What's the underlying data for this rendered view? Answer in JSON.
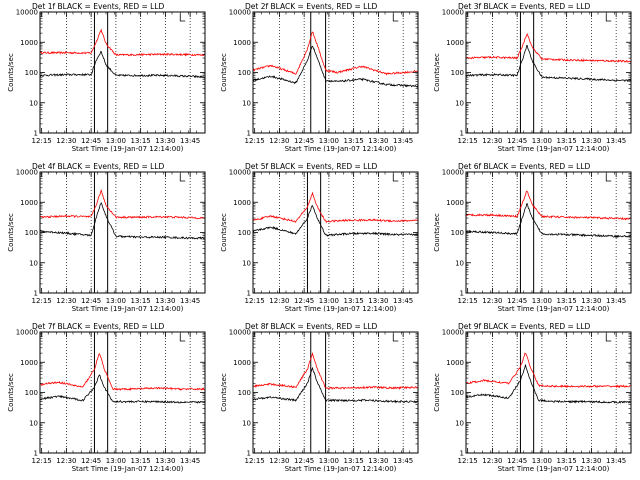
{
  "chart_data": [
    {
      "type": "line",
      "title": "Det 1f BLACK = Events, RED = LLD",
      "xlabel": "Start Time (19-Jan-07 12:14:00)",
      "ylabel": "Counts/sec",
      "y_scale": "log",
      "ylim": [
        1,
        10000
      ],
      "xlim": [
        "12:14",
        "13:54"
      ],
      "x_ticks": [
        "12:15",
        "12:30",
        "12:45",
        "13:00",
        "13:15",
        "13:30",
        "13:45"
      ],
      "y_ticks": [
        "1",
        "10",
        "100",
        "1000",
        "10000"
      ],
      "vlines_dotted": [
        "12:30",
        "12:45",
        "13:00",
        "13:15",
        "13:30",
        "13:45"
      ],
      "vlines_solid": [
        "12:47",
        "12:55"
      ],
      "legend": "top-right",
      "series": [
        {
          "color": "#ff0000",
          "x": [
            "12:14",
            "12:30",
            "12:45",
            "12:48",
            "12:51",
            "12:54",
            "13:00",
            "13:15",
            "13:30",
            "13:45",
            "13:54"
          ],
          "values": [
            450,
            450,
            440,
            1000,
            2600,
            900,
            380,
            390,
            400,
            390,
            380
          ]
        },
        {
          "color": "#000000",
          "x": [
            "12:14",
            "12:30",
            "12:45",
            "12:48",
            "12:51",
            "12:54",
            "13:00",
            "13:15",
            "13:30",
            "13:45",
            "13:54"
          ],
          "values": [
            80,
            85,
            85,
            250,
            500,
            180,
            80,
            80,
            80,
            75,
            70
          ]
        }
      ]
    },
    {
      "type": "line",
      "title": "Det 2f BLACK = Events, RED = LLD",
      "xlabel": "Start Time (19-Jan-07 12:14:00)",
      "ylabel": "Counts/sec",
      "y_scale": "log",
      "ylim": [
        1,
        10000
      ],
      "xlim": [
        "12:14",
        "13:54"
      ],
      "x_ticks": [
        "12:15",
        "12:30",
        "12:45",
        "13:00",
        "13:15",
        "13:30",
        "13:45"
      ],
      "y_ticks": [
        "1",
        "10",
        "100",
        "1000",
        "10000"
      ],
      "vlines_dotted": [
        "12:30",
        "12:45",
        "13:00",
        "13:15",
        "13:30",
        "13:45"
      ],
      "vlines_solid": [
        "12:49",
        "12:58"
      ],
      "legend": "top-right",
      "series": [
        {
          "color": "#ff0000",
          "x": [
            "12:14",
            "12:25",
            "12:40",
            "12:47",
            "12:50",
            "12:53",
            "12:58",
            "13:05",
            "13:20",
            "13:35",
            "13:54"
          ],
          "values": [
            120,
            170,
            90,
            600,
            2300,
            800,
            120,
            100,
            160,
            90,
            110
          ]
        },
        {
          "color": "#000000",
          "x": [
            "12:14",
            "12:25",
            "12:40",
            "12:47",
            "12:50",
            "12:53",
            "12:58",
            "13:05",
            "13:20",
            "13:35",
            "13:54"
          ],
          "values": [
            55,
            75,
            45,
            250,
            800,
            300,
            55,
            50,
            60,
            40,
            35
          ]
        }
      ]
    },
    {
      "type": "line",
      "title": "Det 3f BLACK = Events, RED = LLD",
      "xlabel": "Start Time (19-Jan-07 12:14:00)",
      "ylabel": "Counts/sec",
      "y_scale": "log",
      "ylim": [
        1,
        10000
      ],
      "xlim": [
        "12:14",
        "13:54"
      ],
      "x_ticks": [
        "12:15",
        "12:30",
        "12:45",
        "13:00",
        "13:15",
        "13:30",
        "13:45"
      ],
      "y_ticks": [
        "1",
        "10",
        "100",
        "1000",
        "10000"
      ],
      "vlines_dotted": [
        "12:30",
        "12:45",
        "13:00",
        "13:15",
        "13:30",
        "13:45"
      ],
      "vlines_solid": [
        "12:47",
        "12:55"
      ],
      "legend": "top-right",
      "series": [
        {
          "color": "#ff0000",
          "x": [
            "12:14",
            "12:30",
            "12:45",
            "12:48",
            "12:51",
            "12:54",
            "13:00",
            "13:15",
            "13:30",
            "13:45",
            "13:54"
          ],
          "values": [
            300,
            320,
            300,
            700,
            2000,
            700,
            280,
            260,
            250,
            240,
            230
          ]
        },
        {
          "color": "#000000",
          "x": [
            "12:14",
            "12:30",
            "12:45",
            "12:48",
            "12:51",
            "12:54",
            "13:00",
            "13:15",
            "13:30",
            "13:45",
            "13:54"
          ],
          "values": [
            80,
            85,
            80,
            250,
            800,
            250,
            70,
            65,
            60,
            55,
            55
          ]
        }
      ]
    },
    {
      "type": "line",
      "title": "Det 4f BLACK = Events, RED = LLD",
      "xlabel": "Start Time (19-Jan-07 12:14:00)",
      "ylabel": "Counts/sec",
      "y_scale": "log",
      "ylim": [
        1,
        10000
      ],
      "xlim": [
        "12:14",
        "13:54"
      ],
      "x_ticks": [
        "12:15",
        "12:30",
        "12:45",
        "13:00",
        "13:15",
        "13:30",
        "13:45"
      ],
      "y_ticks": [
        "1",
        "10",
        "100",
        "1000",
        "10000"
      ],
      "vlines_dotted": [
        "12:30",
        "12:45",
        "13:00",
        "13:15",
        "13:30",
        "13:45"
      ],
      "vlines_solid": [
        "12:47",
        "12:55"
      ],
      "legend": "top-right",
      "series": [
        {
          "color": "#ff0000",
          "x": [
            "12:14",
            "12:30",
            "12:45",
            "12:48",
            "12:51",
            "12:54",
            "13:00",
            "13:15",
            "13:30",
            "13:45",
            "13:54"
          ],
          "values": [
            320,
            350,
            330,
            800,
            2400,
            800,
            320,
            320,
            330,
            310,
            300
          ]
        },
        {
          "color": "#000000",
          "x": [
            "12:14",
            "12:30",
            "12:45",
            "12:48",
            "12:51",
            "12:54",
            "13:00",
            "13:15",
            "13:30",
            "13:45",
            "13:54"
          ],
          "values": [
            110,
            95,
            80,
            300,
            1000,
            350,
            75,
            70,
            70,
            65,
            65
          ]
        }
      ]
    },
    {
      "type": "line",
      "title": "Det 5f BLACK = Events, RED = LLD",
      "xlabel": "Start Time (19-Jan-07 12:14:00)",
      "ylabel": "Counts/sec",
      "y_scale": "log",
      "ylim": [
        1,
        10000
      ],
      "xlim": [
        "12:14",
        "13:54"
      ],
      "x_ticks": [
        "12:15",
        "12:30",
        "12:45",
        "13:00",
        "13:15",
        "13:30",
        "13:45"
      ],
      "y_ticks": [
        "1",
        "10",
        "100",
        "1000",
        "10000"
      ],
      "vlines_dotted": [
        "12:30",
        "12:45",
        "13:00",
        "13:15",
        "13:30",
        "13:45"
      ],
      "vlines_solid": [
        "12:47",
        "12:55"
      ],
      "legend": "top-right",
      "series": [
        {
          "color": "#ff0000",
          "x": [
            "12:14",
            "12:25",
            "12:40",
            "12:47",
            "12:50",
            "12:53",
            "12:58",
            "13:10",
            "13:25",
            "13:40",
            "13:54"
          ],
          "values": [
            250,
            350,
            230,
            700,
            2000,
            700,
            230,
            250,
            260,
            240,
            250
          ]
        },
        {
          "color": "#000000",
          "x": [
            "12:14",
            "12:25",
            "12:40",
            "12:47",
            "12:50",
            "12:53",
            "12:58",
            "13:10",
            "13:25",
            "13:40",
            "13:54"
          ],
          "values": [
            110,
            150,
            90,
            300,
            800,
            300,
            80,
            90,
            95,
            85,
            85
          ]
        }
      ]
    },
    {
      "type": "line",
      "title": "Det 6f BLACK = Events, RED = LLD",
      "xlabel": "Start Time (19-Jan-07 12:14:00)",
      "ylabel": "Counts/sec",
      "y_scale": "log",
      "ylim": [
        1,
        10000
      ],
      "xlim": [
        "12:14",
        "13:54"
      ],
      "x_ticks": [
        "12:15",
        "12:30",
        "12:45",
        "13:00",
        "13:15",
        "13:30",
        "13:45"
      ],
      "y_ticks": [
        "1",
        "10",
        "100",
        "1000",
        "10000"
      ],
      "vlines_dotted": [
        "12:30",
        "12:45",
        "13:00",
        "13:15",
        "13:30",
        "13:45"
      ],
      "vlines_solid": [
        "12:47",
        "12:55"
      ],
      "legend": "top-right",
      "series": [
        {
          "color": "#ff0000",
          "x": [
            "12:14",
            "12:30",
            "12:45",
            "12:48",
            "12:51",
            "12:54",
            "13:00",
            "13:15",
            "13:30",
            "13:45",
            "13:54"
          ],
          "values": [
            380,
            380,
            340,
            900,
            2400,
            850,
            340,
            320,
            310,
            290,
            280
          ]
        },
        {
          "color": "#000000",
          "x": [
            "12:14",
            "12:30",
            "12:45",
            "12:48",
            "12:51",
            "12:54",
            "13:00",
            "13:15",
            "13:30",
            "13:45",
            "13:54"
          ],
          "values": [
            110,
            100,
            90,
            300,
            900,
            300,
            90,
            85,
            80,
            75,
            75
          ]
        }
      ]
    },
    {
      "type": "line",
      "title": "Det 7f BLACK = Events, RED = LLD",
      "xlabel": "Start Time (19-Jan-07 12:14:00)",
      "ylabel": "Counts/sec",
      "y_scale": "log",
      "ylim": [
        1,
        10000
      ],
      "xlim": [
        "12:14",
        "13:54"
      ],
      "x_ticks": [
        "12:15",
        "12:30",
        "12:45",
        "13:00",
        "13:15",
        "13:30",
        "13:45"
      ],
      "y_ticks": [
        "1",
        "10",
        "100",
        "1000",
        "10000"
      ],
      "vlines_dotted": [
        "12:30",
        "12:45",
        "13:00",
        "13:15",
        "13:30",
        "13:45"
      ],
      "vlines_solid": [
        "12:47",
        "12:55"
      ],
      "legend": "top-right",
      "series": [
        {
          "color": "#ff0000",
          "x": [
            "12:14",
            "12:25",
            "12:40",
            "12:47",
            "12:50",
            "12:53",
            "12:58",
            "13:10",
            "13:25",
            "13:40",
            "13:54"
          ],
          "values": [
            180,
            220,
            150,
            600,
            2000,
            600,
            130,
            130,
            140,
            130,
            130
          ]
        },
        {
          "color": "#000000",
          "x": [
            "12:14",
            "12:25",
            "12:40",
            "12:47",
            "12:50",
            "12:53",
            "12:58",
            "13:10",
            "13:25",
            "13:40",
            "13:54"
          ],
          "values": [
            60,
            75,
            55,
            150,
            400,
            150,
            50,
            50,
            50,
            48,
            48
          ]
        }
      ]
    },
    {
      "type": "line",
      "title": "Det 8f BLACK = Events, RED = LLD",
      "xlabel": "Start Time (19-Jan-07 12:14:00)",
      "ylabel": "Counts/sec",
      "y_scale": "log",
      "ylim": [
        1,
        10000
      ],
      "xlim": [
        "12:14",
        "13:54"
      ],
      "x_ticks": [
        "12:15",
        "12:30",
        "12:45",
        "13:00",
        "13:15",
        "13:30",
        "13:45"
      ],
      "y_ticks": [
        "1",
        "10",
        "100",
        "1000",
        "10000"
      ],
      "vlines_dotted": [
        "12:30",
        "12:45",
        "13:00",
        "13:15",
        "13:30",
        "13:45"
      ],
      "vlines_solid": [
        "12:49",
        "12:58"
      ],
      "legend": "top-right",
      "series": [
        {
          "color": "#ff0000",
          "x": [
            "12:14",
            "12:25",
            "12:40",
            "12:47",
            "12:50",
            "12:53",
            "12:58",
            "13:10",
            "13:25",
            "13:40",
            "13:54"
          ],
          "values": [
            160,
            190,
            150,
            600,
            2000,
            600,
            140,
            140,
            150,
            140,
            150
          ]
        },
        {
          "color": "#000000",
          "x": [
            "12:14",
            "12:25",
            "12:40",
            "12:47",
            "12:50",
            "12:53",
            "12:58",
            "13:10",
            "13:25",
            "13:40",
            "13:54"
          ],
          "values": [
            60,
            70,
            55,
            200,
            650,
            220,
            55,
            55,
            55,
            50,
            50
          ]
        }
      ]
    },
    {
      "type": "line",
      "title": "Det 9f BLACK = Events, RED = LLD",
      "xlabel": "Start Time (19-Jan-07 12:14:00)",
      "ylabel": "Counts/sec",
      "y_scale": "log",
      "ylim": [
        1,
        10000
      ],
      "xlim": [
        "12:14",
        "13:54"
      ],
      "x_ticks": [
        "12:15",
        "12:30",
        "12:45",
        "13:00",
        "13:15",
        "13:30",
        "13:45"
      ],
      "y_ticks": [
        "1",
        "10",
        "100",
        "1000",
        "10000"
      ],
      "vlines_dotted": [
        "12:30",
        "12:45",
        "13:00",
        "13:15",
        "13:30",
        "13:45"
      ],
      "vlines_solid": [
        "12:47",
        "12:55"
      ],
      "legend": "top-right",
      "series": [
        {
          "color": "#ff0000",
          "x": [
            "12:14",
            "12:25",
            "12:40",
            "12:47",
            "12:50",
            "12:53",
            "12:58",
            "13:10",
            "13:25",
            "13:40",
            "13:54"
          ],
          "values": [
            200,
            250,
            200,
            700,
            2100,
            700,
            170,
            160,
            160,
            160,
            160
          ]
        },
        {
          "color": "#000000",
          "x": [
            "12:14",
            "12:25",
            "12:40",
            "12:47",
            "12:50",
            "12:53",
            "12:58",
            "13:10",
            "13:25",
            "13:40",
            "13:54"
          ],
          "values": [
            70,
            85,
            65,
            250,
            800,
            250,
            55,
            50,
            50,
            48,
            48
          ]
        }
      ]
    }
  ]
}
